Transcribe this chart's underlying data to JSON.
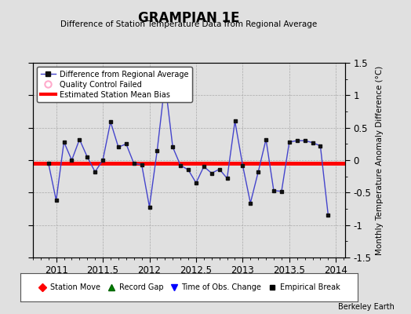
{
  "title": "GRAMPIAN 1E",
  "subtitle": "Difference of Station Temperature Data from Regional Average",
  "ylabel": "Monthly Temperature Anomaly Difference (°C)",
  "xlabel": "",
  "xlim": [
    2010.75,
    2014.1
  ],
  "ylim": [
    -1.5,
    1.5
  ],
  "xticks": [
    2011,
    2011.5,
    2012,
    2012.5,
    2013,
    2013.5,
    2014
  ],
  "yticks": [
    -1.5,
    -1.0,
    -0.5,
    0.0,
    0.5,
    1.0,
    1.5
  ],
  "bias_value": -0.05,
  "bg_color": "#e0e0e0",
  "line_color": "#4444cc",
  "marker_color": "#111111",
  "bias_color": "#ff0000",
  "watermark": "Berkeley Earth",
  "x_data": [
    2010.917,
    2011.0,
    2011.083,
    2011.167,
    2011.25,
    2011.333,
    2011.417,
    2011.5,
    2011.583,
    2011.667,
    2011.75,
    2011.833,
    2011.917,
    2012.0,
    2012.083,
    2012.167,
    2012.25,
    2012.333,
    2012.417,
    2012.5,
    2012.583,
    2012.667,
    2012.75,
    2012.833,
    2012.917,
    2013.0,
    2013.083,
    2013.167,
    2013.25,
    2013.333,
    2013.417,
    2013.5,
    2013.583,
    2013.667,
    2013.75,
    2013.833,
    2013.917
  ],
  "y_data": [
    -0.05,
    -0.62,
    0.28,
    0.0,
    0.32,
    0.05,
    -0.18,
    0.0,
    0.59,
    0.2,
    0.25,
    -0.05,
    -0.07,
    -0.72,
    0.15,
    1.2,
    0.2,
    -0.08,
    -0.15,
    -0.35,
    -0.1,
    -0.2,
    -0.14,
    -0.28,
    0.6,
    -0.08,
    -0.66,
    -0.18,
    0.32,
    -0.47,
    -0.48,
    0.28,
    0.3,
    0.3,
    0.27,
    0.22,
    -0.85
  ],
  "qc_fail_idx": [
    15
  ],
  "qc_fail_color": "#ffaacc"
}
